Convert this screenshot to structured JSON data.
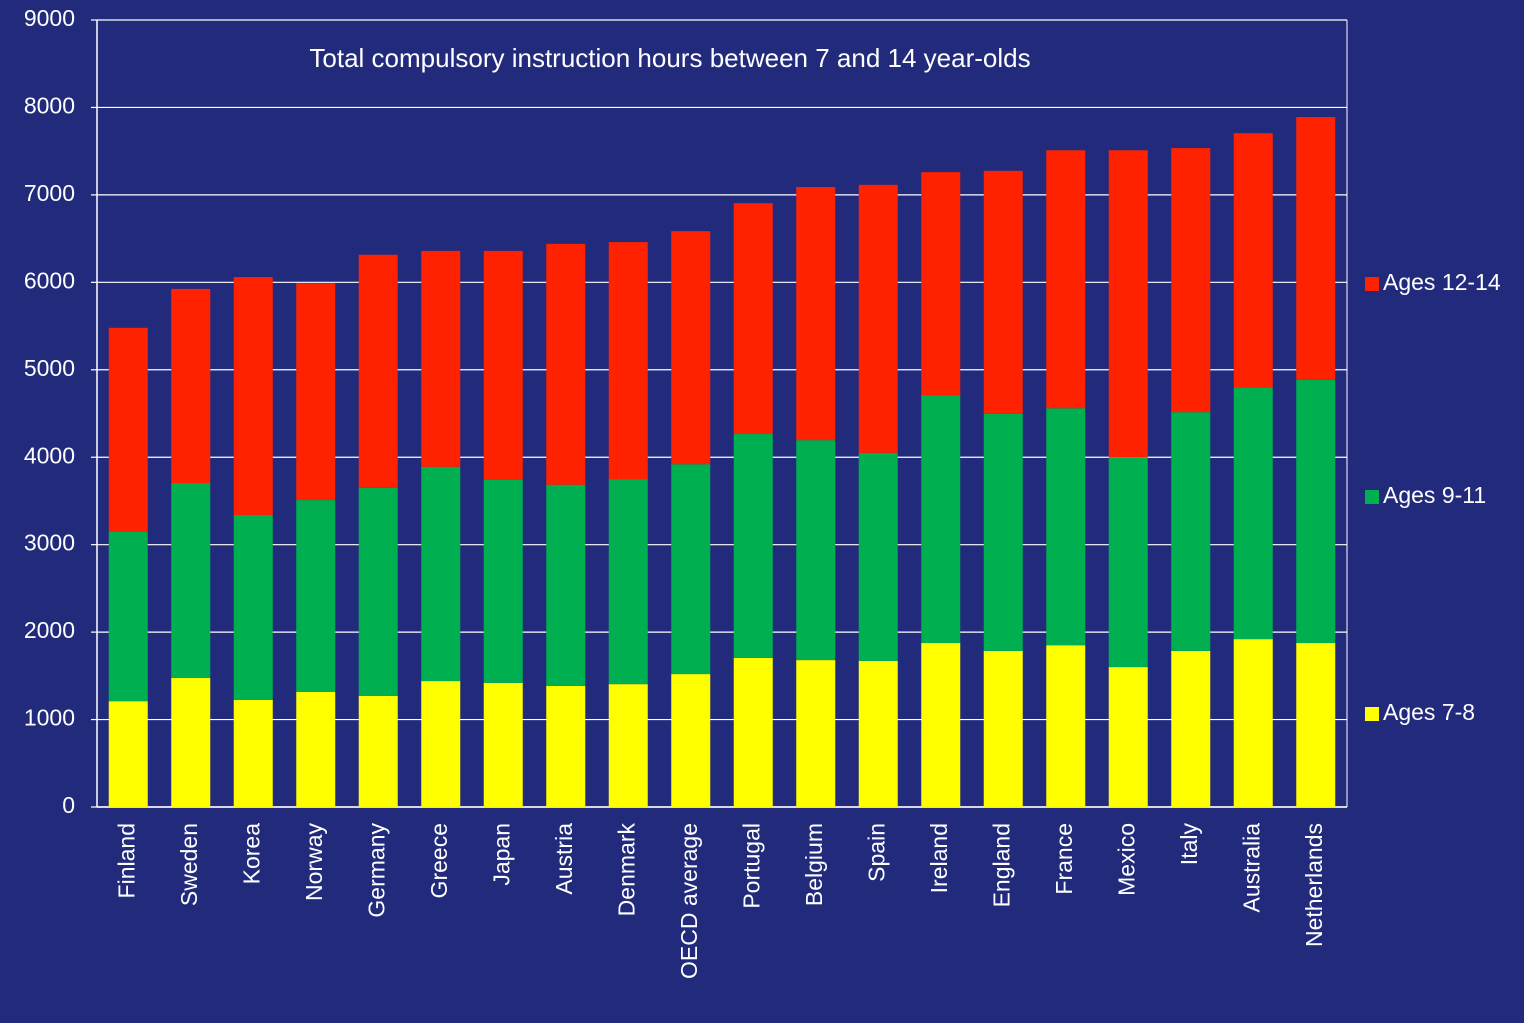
{
  "chart_data": {
    "type": "stacked_bar",
    "title": "Total compulsory instruction hours between 7 and 14 year-olds",
    "categories": [
      "Finland",
      "Sweden",
      "Korea",
      "Norway",
      "Germany",
      "Greece",
      "Japan",
      "Austria",
      "Denmark",
      "OECD average",
      "Portugal",
      "Belgium",
      "Spain",
      "Ireland",
      "England",
      "France",
      "Mexico",
      "Italy",
      "Australia",
      "Netherlands"
    ],
    "series": [
      {
        "name": "Ages 7-8",
        "color": "#ffff00",
        "values": [
          1210,
          1475,
          1225,
          1315,
          1270,
          1440,
          1420,
          1385,
          1405,
          1520,
          1705,
          1680,
          1670,
          1875,
          1785,
          1850,
          1600,
          1785,
          1920,
          1875
        ]
      },
      {
        "name": "Ages 9-11",
        "color": "#00b050",
        "values": [
          1935,
          2230,
          2115,
          2195,
          2380,
          2450,
          2320,
          2300,
          2345,
          2400,
          2560,
          2515,
          2380,
          2835,
          2710,
          2710,
          2400,
          2730,
          2880,
          3010
        ]
      },
      {
        "name": "Ages 12-14",
        "color": "#ff2200",
        "values": [
          2335,
          2220,
          2720,
          2480,
          2665,
          2470,
          2620,
          2755,
          2710,
          2665,
          2640,
          2895,
          3065,
          2550,
          2780,
          2950,
          3510,
          3020,
          2905,
          3005
        ]
      }
    ],
    "ylim": [
      0,
      9000
    ],
    "yticks": [
      0,
      1000,
      2000,
      3000,
      4000,
      5000,
      6000,
      7000,
      8000,
      9000
    ],
    "grid": true,
    "legend": "right"
  }
}
